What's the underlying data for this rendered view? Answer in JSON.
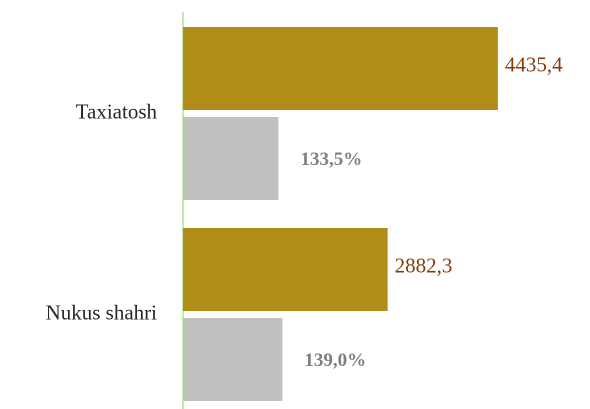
{
  "chart_data": {
    "type": "bar",
    "orientation": "horizontal",
    "categories": [
      "Taxiatosh",
      "Nukus shahri"
    ],
    "series": [
      {
        "color": "#b08d16",
        "label_color": "#843c0c",
        "values": [
          4435.4,
          2882.3
        ],
        "value_labels": [
          "4435,4",
          "2882,3"
        ]
      },
      {
        "color": "#c0c0c0",
        "label_color": "#7f7f7f",
        "values": [
          133.5,
          139.0
        ],
        "value_labels": [
          "133,5%",
          "139,0%"
        ]
      }
    ]
  }
}
